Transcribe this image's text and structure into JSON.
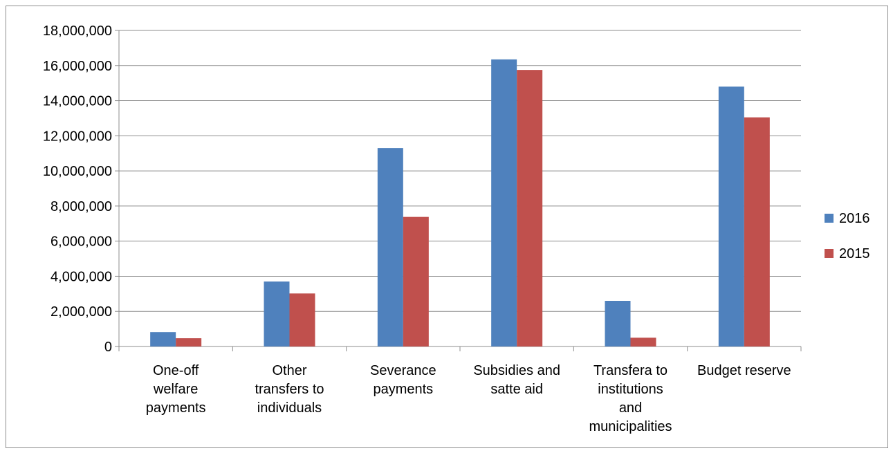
{
  "chart_data": {
    "type": "bar",
    "categories": [
      [
        "One-off",
        "welfare",
        "payments"
      ],
      [
        "Other",
        "transfers to",
        "individuals"
      ],
      [
        "Severance",
        "payments"
      ],
      [
        "Subsidies and",
        "satte aid"
      ],
      [
        "Transfera to",
        "institutions",
        "and",
        "municipalities"
      ],
      [
        "Budget reserve"
      ]
    ],
    "series": [
      {
        "name": "2016",
        "color": "#4F81BD",
        "values": [
          820000,
          3700000,
          11300000,
          16350000,
          2600000,
          14800000
        ]
      },
      {
        "name": "2015",
        "color": "#C0504D",
        "values": [
          470000,
          3020000,
          7380000,
          15750000,
          500000,
          13050000
        ]
      }
    ],
    "ylim": [
      0,
      18000000
    ],
    "yticks": [
      0,
      2000000,
      4000000,
      6000000,
      8000000,
      10000000,
      12000000,
      14000000,
      16000000,
      18000000
    ],
    "ytick_labels": [
      "0",
      "2,000,000",
      "4,000,000",
      "6,000,000",
      "8,000,000",
      "10,000,000",
      "12,000,000",
      "14,000,000",
      "16,000,000",
      "18,000,000"
    ],
    "grid": true,
    "legend_position": "right",
    "title": "",
    "xlabel": "",
    "ylabel": ""
  }
}
